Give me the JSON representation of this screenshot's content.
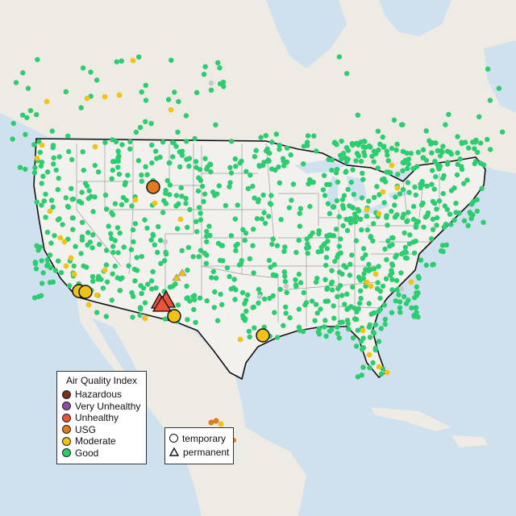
{
  "legend": {
    "title": "Air Quality Index",
    "categories": [
      {
        "label": "Hazardous",
        "color": "#7e2d1e"
      },
      {
        "label": "Very Unhealthy",
        "color": "#8a4fa5"
      },
      {
        "label": "Unhealthy",
        "color": "#e8533a"
      },
      {
        "label": "USG",
        "color": "#e07b22"
      },
      {
        "label": "Moderate",
        "color": "#f2c317"
      },
      {
        "label": "Good",
        "color": "#2ecc71"
      }
    ]
  },
  "shape_legend": {
    "temporary": "temporary",
    "permanent": "permanent"
  },
  "colors": {
    "water": "#cfe0ee",
    "land_foreign": "#efebe6",
    "land_us": "#f2f0ec",
    "border": "#111111",
    "state_line": "#9a9a9a",
    "good": "#2ecc71",
    "moderate": "#f2c317",
    "usg": "#e07b22",
    "unhealthy": "#e8533a",
    "no_data": "#c8c8c8"
  }
}
